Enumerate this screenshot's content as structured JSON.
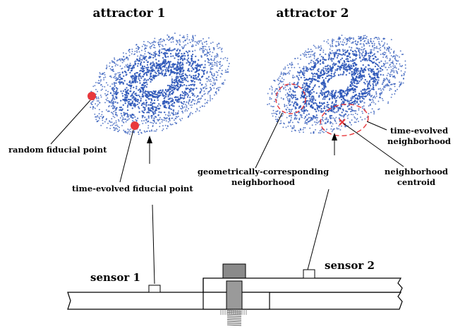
{
  "attractor1": {
    "title": "attractor 1",
    "labels": {
      "random_fiducial": "random fiducial point",
      "time_evolved_fiducial": "time-evolved fiducial point"
    }
  },
  "attractor2": {
    "title": "attractor 2",
    "labels": {
      "geo_line1": "geometrically-corresponding",
      "geo_line2": "neighborhood",
      "te_line1": "time-evolved",
      "te_line2": "neighborhood",
      "centroid_line1": "neighborhood",
      "centroid_line2": "centroid"
    }
  },
  "sensors": {
    "sensor1": "sensor 1",
    "sensor2": "sensor 2"
  },
  "colors": {
    "points": "#2b55b8",
    "fiducial": "#e8383c",
    "neighborhood": "#e8383c"
  }
}
